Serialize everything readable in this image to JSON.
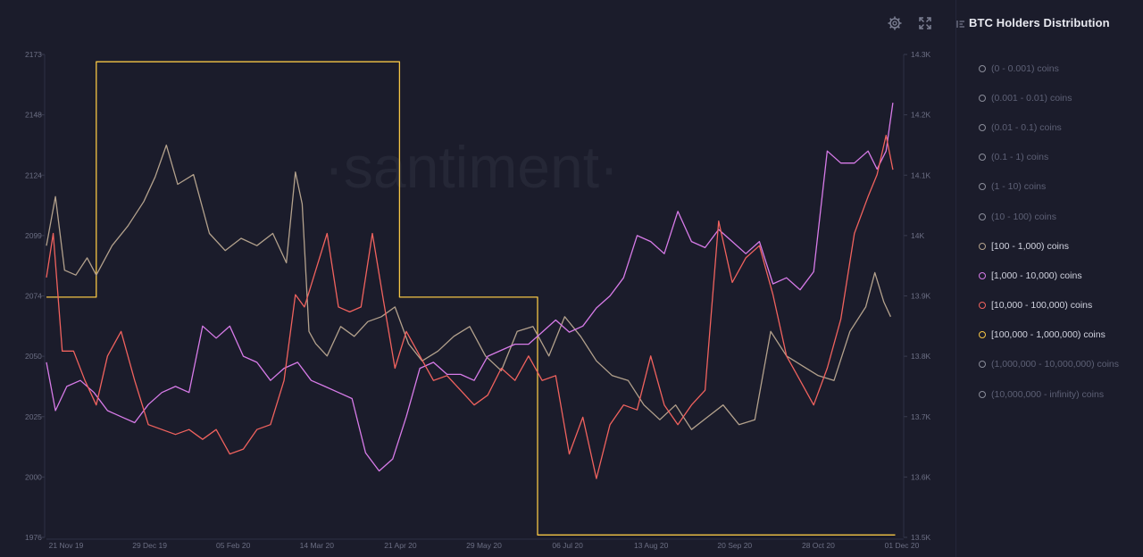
{
  "chart_title": "BTC Holders Distribution",
  "watermark": "·santiment·",
  "icons": {
    "settings": "gear-icon",
    "fullscreen": "expand-icon",
    "sidebar_toggle": "collapse-icon"
  },
  "legend": [
    {
      "label": "(0 - 0.001) coins",
      "color": "#8a8c99",
      "active": false
    },
    {
      "label": "(0.001 - 0.01) coins",
      "color": "#8a8c99",
      "active": false
    },
    {
      "label": "(0.01 - 0.1) coins",
      "color": "#8a8c99",
      "active": false
    },
    {
      "label": "(0.1 - 1) coins",
      "color": "#8a8c99",
      "active": false
    },
    {
      "label": "(1 - 10) coins",
      "color": "#8a8c99",
      "active": false
    },
    {
      "label": "(10 - 100) coins",
      "color": "#8a8c99",
      "active": false
    },
    {
      "label": "[100 - 1,000) coins",
      "color": "#b3a18c",
      "active": true
    },
    {
      "label": "[1,000 - 10,000) coins",
      "color": "#d77be8",
      "active": true
    },
    {
      "label": "[10,000 - 100,000) coins",
      "color": "#f0625e",
      "active": true
    },
    {
      "label": "[100,000 - 1,000,000) coins",
      "color": "#f5c545",
      "active": true
    },
    {
      "label": "(1,000,000 - 10,000,000) coins",
      "color": "#8a8c99",
      "active": false
    },
    {
      "label": "(10,000,000 - infinity) coins",
      "color": "#8a8c99",
      "active": false
    }
  ],
  "chart_data": {
    "type": "line",
    "title": "BTC Holders Distribution",
    "x_ticks": [
      "21 Nov 19",
      "29 Dec 19",
      "05 Feb 20",
      "14 Mar 20",
      "21 Apr 20",
      "29 May 20",
      "06 Jul 20",
      "13 Aug 20",
      "20 Sep 20",
      "28 Oct 20",
      "01 Dec 20"
    ],
    "left_axis": {
      "ticks": [
        "1976",
        "2000",
        "2025",
        "2050",
        "2074",
        "2099",
        "2124",
        "2148",
        "2173"
      ],
      "range": [
        1976,
        2173
      ]
    },
    "right_axis": {
      "ticks": [
        "13.5K",
        "13.6K",
        "13.7K",
        "13.8K",
        "13.9K",
        "14K",
        "14.1K",
        "14.2K",
        "14.3K"
      ],
      "range": [
        13500,
        14300
      ]
    },
    "grid": false,
    "series": [
      {
        "name": "[100,000 - 1,000,000) coins",
        "color": "#f5c545",
        "axis": "left",
        "x": [
          "2019-11-21",
          "2019-12-13",
          "2019-12-13",
          "2020-04-25",
          "2020-04-25",
          "2020-06-25",
          "2020-06-25",
          "2020-11-30"
        ],
        "values": [
          2074,
          2074,
          2170,
          2170,
          2074,
          2074,
          1977,
          1977
        ]
      },
      {
        "name": "[100 - 1,000) coins",
        "color": "#b3a18c",
        "axis": "left",
        "x": [
          "2019-11-21",
          "2019-11-25",
          "2019-11-29",
          "2019-12-04",
          "2019-12-09",
          "2019-12-13",
          "2019-12-20",
          "2019-12-27",
          "2020-01-03",
          "2020-01-08",
          "2020-01-13",
          "2020-01-18",
          "2020-01-25",
          "2020-02-01",
          "2020-02-08",
          "2020-02-15",
          "2020-02-22",
          "2020-02-29",
          "2020-03-06",
          "2020-03-10",
          "2020-03-13",
          "2020-03-16",
          "2020-03-19",
          "2020-03-24",
          "2020-03-30",
          "2020-04-05",
          "2020-04-11",
          "2020-04-17",
          "2020-04-23",
          "2020-04-29",
          "2020-05-05",
          "2020-05-12",
          "2020-05-19",
          "2020-05-26",
          "2020-06-02",
          "2020-06-09",
          "2020-06-16",
          "2020-06-23",
          "2020-06-30",
          "2020-07-07",
          "2020-07-14",
          "2020-07-21",
          "2020-07-28",
          "2020-08-04",
          "2020-08-11",
          "2020-08-18",
          "2020-08-25",
          "2020-09-01",
          "2020-09-08",
          "2020-09-15",
          "2020-09-22",
          "2020-09-29",
          "2020-10-06",
          "2020-10-13",
          "2020-10-20",
          "2020-10-27",
          "2020-11-03",
          "2020-11-10",
          "2020-11-17",
          "2020-11-21",
          "2020-11-25",
          "2020-11-28"
        ],
        "values": [
          2095,
          2115,
          2085,
          2083,
          2090,
          2083,
          2095,
          2103,
          2113,
          2123,
          2136,
          2120,
          2124,
          2100,
          2093,
          2098,
          2095,
          2100,
          2088,
          2125,
          2112,
          2060,
          2055,
          2050,
          2062,
          2058,
          2064,
          2066,
          2070,
          2055,
          2048,
          2052,
          2058,
          2062,
          2050,
          2044,
          2060,
          2062,
          2050,
          2066,
          2058,
          2048,
          2042,
          2040,
          2030,
          2024,
          2030,
          2020,
          2025,
          2030,
          2022,
          2024,
          2060,
          2050,
          2046,
          2042,
          2040,
          2060,
          2070,
          2084,
          2072,
          2066
        ]
      },
      {
        "name": "[1,000 - 10,000) coins",
        "color": "#d77be8",
        "axis": "right",
        "x": [
          "2019-11-21",
          "2019-11-25",
          "2019-11-30",
          "2019-12-06",
          "2019-12-12",
          "2019-12-18",
          "2019-12-24",
          "2019-12-30",
          "2020-01-05",
          "2020-01-11",
          "2020-01-17",
          "2020-01-23",
          "2020-01-29",
          "2020-02-04",
          "2020-02-10",
          "2020-02-16",
          "2020-02-22",
          "2020-02-28",
          "2020-03-05",
          "2020-03-11",
          "2020-03-17",
          "2020-03-23",
          "2020-03-29",
          "2020-04-04",
          "2020-04-10",
          "2020-04-16",
          "2020-04-22",
          "2020-04-28",
          "2020-05-04",
          "2020-05-10",
          "2020-05-16",
          "2020-05-22",
          "2020-05-28",
          "2020-06-03",
          "2020-06-09",
          "2020-06-15",
          "2020-06-21",
          "2020-06-27",
          "2020-07-03",
          "2020-07-09",
          "2020-07-15",
          "2020-07-21",
          "2020-07-27",
          "2020-08-02",
          "2020-08-08",
          "2020-08-14",
          "2020-08-20",
          "2020-08-26",
          "2020-09-01",
          "2020-09-07",
          "2020-09-13",
          "2020-09-19",
          "2020-09-25",
          "2020-10-01",
          "2020-10-07",
          "2020-10-13",
          "2020-10-19",
          "2020-10-25",
          "2020-10-31",
          "2020-11-06",
          "2020-11-12",
          "2020-11-18",
          "2020-11-22",
          "2020-11-26",
          "2020-11-29"
        ],
        "values": [
          13790,
          13710,
          13750,
          13760,
          13740,
          13710,
          13700,
          13690,
          13720,
          13740,
          13750,
          13740,
          13850,
          13830,
          13850,
          13800,
          13790,
          13760,
          13780,
          13790,
          13760,
          13750,
          13740,
          13730,
          13640,
          13610,
          13630,
          13700,
          13780,
          13790,
          13770,
          13770,
          13760,
          13800,
          13810,
          13820,
          13820,
          13840,
          13860,
          13840,
          13850,
          13880,
          13900,
          13930,
          14000,
          13990,
          13970,
          14040,
          13990,
          13980,
          14010,
          13990,
          13970,
          13990,
          13920,
          13930,
          13910,
          13940,
          14140,
          14120,
          14120,
          14140,
          14110,
          14140,
          14220
        ]
      },
      {
        "name": "[10,000 - 100,000) coins",
        "color": "#f0625e",
        "axis": "left",
        "x": [
          "2019-11-21",
          "2019-11-24",
          "2019-11-28",
          "2019-12-03",
          "2019-12-08",
          "2019-12-13",
          "2019-12-18",
          "2019-12-24",
          "2019-12-30",
          "2020-01-05",
          "2020-01-11",
          "2020-01-17",
          "2020-01-23",
          "2020-01-29",
          "2020-02-04",
          "2020-02-10",
          "2020-02-16",
          "2020-02-22",
          "2020-02-28",
          "2020-03-05",
          "2020-03-10",
          "2020-03-14",
          "2020-03-19",
          "2020-03-24",
          "2020-03-29",
          "2020-04-03",
          "2020-04-08",
          "2020-04-13",
          "2020-04-18",
          "2020-04-23",
          "2020-04-28",
          "2020-05-04",
          "2020-05-10",
          "2020-05-16",
          "2020-05-22",
          "2020-05-28",
          "2020-06-03",
          "2020-06-09",
          "2020-06-15",
          "2020-06-21",
          "2020-06-27",
          "2020-07-03",
          "2020-07-09",
          "2020-07-15",
          "2020-07-21",
          "2020-07-27",
          "2020-08-02",
          "2020-08-08",
          "2020-08-14",
          "2020-08-20",
          "2020-08-26",
          "2020-09-01",
          "2020-09-07",
          "2020-09-13",
          "2020-09-19",
          "2020-09-25",
          "2020-10-01",
          "2020-10-07",
          "2020-10-13",
          "2020-10-19",
          "2020-10-25",
          "2020-10-31",
          "2020-11-06",
          "2020-11-12",
          "2020-11-18",
          "2020-11-22",
          "2020-11-26",
          "2020-11-29"
        ],
        "values": [
          2082,
          2100,
          2052,
          2052,
          2040,
          2030,
          2050,
          2060,
          2040,
          2022,
          2020,
          2018,
          2020,
          2016,
          2020,
          2010,
          2012,
          2020,
          2022,
          2040,
          2075,
          2070,
          2085,
          2100,
          2070,
          2068,
          2070,
          2100,
          2072,
          2045,
          2060,
          2050,
          2040,
          2042,
          2036,
          2030,
          2034,
          2045,
          2040,
          2050,
          2040,
          2042,
          2010,
          2025,
          2000,
          2022,
          2030,
          2028,
          2050,
          2030,
          2022,
          2030,
          2036,
          2105,
          2080,
          2090,
          2095,
          2075,
          2050,
          2040,
          2030,
          2045,
          2065,
          2100,
          2115,
          2124,
          2140,
          2126
        ]
      }
    ]
  }
}
